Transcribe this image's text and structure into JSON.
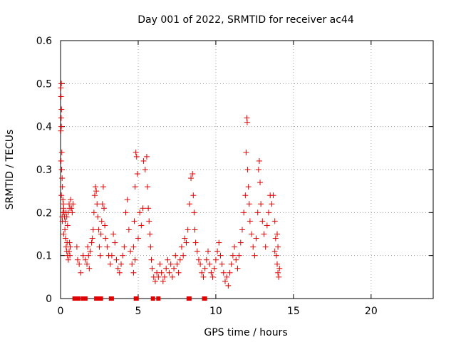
{
  "chart_data": {
    "type": "scatter",
    "title": "Day 001 of 2022, SRMTID for receiver ac44",
    "xlabel": "GPS time / hours",
    "ylabel": "SRMTID / TECUs",
    "xlim": [
      0,
      24
    ],
    "ylim": [
      0,
      0.6
    ],
    "grid": true,
    "marker": "plus",
    "color": "#e00000",
    "xticks": [
      0,
      5,
      10,
      15,
      20
    ],
    "xtick_labels": [
      "0",
      "5",
      "10",
      "15",
      "20"
    ],
    "yticks": [
      0,
      0.1,
      0.2,
      0.3,
      0.4,
      0.5,
      0.6
    ],
    "ytick_labels": [
      "0",
      "0.1",
      "0.2",
      "0.3",
      "0.4",
      "0.5",
      "0.6"
    ],
    "series": [
      {
        "name": "SRMTID",
        "marker": "plus",
        "points": [
          [
            0.02,
            0.49
          ],
          [
            0.05,
            0.5
          ],
          [
            0.03,
            0.47
          ],
          [
            0.06,
            0.44
          ],
          [
            0.04,
            0.42
          ],
          [
            0.02,
            0.39
          ],
          [
            0.05,
            0.4
          ],
          [
            0.08,
            0.34
          ],
          [
            0.03,
            0.32
          ],
          [
            0.07,
            0.3
          ],
          [
            0.1,
            0.28
          ],
          [
            0.12,
            0.26
          ],
          [
            0.05,
            0.24
          ],
          [
            0.15,
            0.23
          ],
          [
            0.18,
            0.22
          ],
          [
            0.2,
            0.21
          ],
          [
            0.22,
            0.2
          ],
          [
            0.25,
            0.19
          ],
          [
            0.3,
            0.18
          ],
          [
            0.35,
            0.2
          ],
          [
            0.4,
            0.19
          ],
          [
            0.45,
            0.17
          ],
          [
            0.5,
            0.2
          ],
          [
            0.55,
            0.22
          ],
          [
            0.6,
            0.21
          ],
          [
            0.65,
            0.23
          ],
          [
            0.7,
            0.21
          ],
          [
            0.75,
            0.2
          ],
          [
            0.8,
            0.22
          ],
          [
            0.28,
            0.16
          ],
          [
            0.32,
            0.14
          ],
          [
            0.36,
            0.12
          ],
          [
            0.4,
            0.11
          ],
          [
            0.45,
            0.1
          ],
          [
            0.5,
            0.09
          ],
          [
            0.55,
            0.11
          ],
          [
            0.6,
            0.1
          ],
          [
            0.42,
            0.13
          ],
          [
            0.2,
            0.15
          ],
          [
            0.12,
            0.18
          ],
          [
            0.15,
            0.2
          ],
          [
            0.1,
            0.19
          ],
          [
            0.62,
            0.12
          ],
          [
            0.58,
            0.13
          ],
          [
            1.05,
            0.12
          ],
          [
            1.1,
            0.09
          ],
          [
            1.2,
            0.08
          ],
          [
            1.3,
            0.06
          ],
          [
            1.45,
            0.1
          ],
          [
            1.6,
            0.09
          ],
          [
            1.7,
            0.08
          ],
          [
            1.75,
            0.12
          ],
          [
            1.8,
            0.1
          ],
          [
            1.85,
            0.07
          ],
          [
            1.9,
            0.11
          ],
          [
            2.0,
            0.13
          ],
          [
            2.05,
            0.14
          ],
          [
            2.1,
            0.16
          ],
          [
            2.15,
            0.2
          ],
          [
            2.2,
            0.24
          ],
          [
            2.25,
            0.26
          ],
          [
            2.3,
            0.25
          ],
          [
            2.35,
            0.22
          ],
          [
            2.4,
            0.19
          ],
          [
            2.45,
            0.16
          ],
          [
            2.5,
            0.12
          ],
          [
            2.55,
            0.1
          ],
          [
            2.6,
            0.15
          ],
          [
            2.65,
            0.18
          ],
          [
            2.7,
            0.22
          ],
          [
            2.75,
            0.26
          ],
          [
            2.8,
            0.21
          ],
          [
            2.85,
            0.17
          ],
          [
            2.9,
            0.14
          ],
          [
            3.0,
            0.12
          ],
          [
            3.1,
            0.1
          ],
          [
            3.2,
            0.08
          ],
          [
            3.3,
            0.1
          ],
          [
            3.4,
            0.15
          ],
          [
            3.5,
            0.13
          ],
          [
            3.6,
            0.09
          ],
          [
            3.7,
            0.07
          ],
          [
            3.8,
            0.06
          ],
          [
            3.9,
            0.08
          ],
          [
            4.0,
            0.1
          ],
          [
            4.1,
            0.12
          ],
          [
            4.2,
            0.2
          ],
          [
            4.3,
            0.23
          ],
          [
            4.4,
            0.16
          ],
          [
            4.5,
            0.11
          ],
          [
            4.6,
            0.08
          ],
          [
            4.7,
            0.06
          ],
          [
            4.8,
            0.09
          ],
          [
            4.85,
            0.34
          ],
          [
            4.9,
            0.33
          ],
          [
            4.95,
            0.29
          ],
          [
            4.8,
            0.26
          ],
          [
            4.75,
            0.18
          ],
          [
            4.7,
            0.12
          ],
          [
            5.0,
            0.14
          ],
          [
            5.1,
            0.2
          ],
          [
            5.2,
            0.17
          ],
          [
            5.3,
            0.21
          ],
          [
            5.35,
            0.32
          ],
          [
            5.45,
            0.3
          ],
          [
            5.55,
            0.33
          ],
          [
            5.6,
            0.26
          ],
          [
            5.65,
            0.21
          ],
          [
            5.7,
            0.18
          ],
          [
            5.75,
            0.15
          ],
          [
            5.8,
            0.12
          ],
          [
            5.85,
            0.09
          ],
          [
            5.9,
            0.07
          ],
          [
            6.0,
            0.05
          ],
          [
            6.1,
            0.04
          ],
          [
            6.2,
            0.06
          ],
          [
            6.3,
            0.05
          ],
          [
            6.4,
            0.08
          ],
          [
            6.5,
            0.06
          ],
          [
            6.6,
            0.04
          ],
          [
            6.7,
            0.05
          ],
          [
            6.8,
            0.07
          ],
          [
            6.9,
            0.09
          ],
          [
            7.0,
            0.06
          ],
          [
            7.1,
            0.08
          ],
          [
            7.2,
            0.05
          ],
          [
            7.3,
            0.07
          ],
          [
            7.4,
            0.1
          ],
          [
            7.5,
            0.08
          ],
          [
            7.6,
            0.06
          ],
          [
            7.7,
            0.09
          ],
          [
            7.8,
            0.12
          ],
          [
            7.9,
            0.1
          ],
          [
            8.0,
            0.14
          ],
          [
            8.1,
            0.13
          ],
          [
            8.2,
            0.16
          ],
          [
            8.3,
            0.22
          ],
          [
            8.4,
            0.28
          ],
          [
            8.5,
            0.29
          ],
          [
            8.55,
            0.24
          ],
          [
            8.6,
            0.2
          ],
          [
            8.65,
            0.16
          ],
          [
            8.7,
            0.13
          ],
          [
            8.8,
            0.11
          ],
          [
            8.9,
            0.09
          ],
          [
            9.0,
            0.08
          ],
          [
            9.1,
            0.06
          ],
          [
            9.2,
            0.05
          ],
          [
            9.3,
            0.07
          ],
          [
            9.4,
            0.09
          ],
          [
            9.5,
            0.11
          ],
          [
            9.6,
            0.08
          ],
          [
            9.7,
            0.06
          ],
          [
            9.8,
            0.05
          ],
          [
            9.9,
            0.07
          ],
          [
            10.0,
            0.09
          ],
          [
            10.1,
            0.11
          ],
          [
            10.2,
            0.13
          ],
          [
            10.3,
            0.1
          ],
          [
            10.4,
            0.08
          ],
          [
            10.5,
            0.06
          ],
          [
            10.6,
            0.04
          ],
          [
            10.7,
            0.05
          ],
          [
            10.8,
            0.03
          ],
          [
            10.9,
            0.06
          ],
          [
            11.0,
            0.08
          ],
          [
            11.1,
            0.1
          ],
          [
            11.2,
            0.12
          ],
          [
            11.3,
            0.09
          ],
          [
            11.4,
            0.07
          ],
          [
            11.5,
            0.1
          ],
          [
            11.6,
            0.13
          ],
          [
            11.7,
            0.16
          ],
          [
            11.8,
            0.2
          ],
          [
            11.9,
            0.24
          ],
          [
            11.95,
            0.34
          ],
          [
            12.0,
            0.42
          ],
          [
            12.02,
            0.41
          ],
          [
            12.05,
            0.3
          ],
          [
            12.1,
            0.26
          ],
          [
            12.15,
            0.22
          ],
          [
            12.2,
            0.18
          ],
          [
            12.3,
            0.15
          ],
          [
            12.4,
            0.12
          ],
          [
            12.5,
            0.1
          ],
          [
            12.6,
            0.14
          ],
          [
            12.7,
            0.2
          ],
          [
            12.75,
            0.3
          ],
          [
            12.8,
            0.32
          ],
          [
            12.85,
            0.27
          ],
          [
            12.9,
            0.22
          ],
          [
            13.0,
            0.18
          ],
          [
            13.1,
            0.15
          ],
          [
            13.2,
            0.12
          ],
          [
            13.3,
            0.17
          ],
          [
            13.4,
            0.2
          ],
          [
            13.5,
            0.24
          ],
          [
            13.6,
            0.22
          ],
          [
            13.7,
            0.24
          ],
          [
            13.8,
            0.18
          ],
          [
            13.85,
            0.14
          ],
          [
            13.9,
            0.1
          ],
          [
            13.95,
            0.08
          ],
          [
            14.0,
            0.06
          ],
          [
            14.05,
            0.05
          ],
          [
            14.1,
            0.07
          ],
          [
            14.0,
            0.12
          ],
          [
            13.95,
            0.15
          ],
          [
            13.8,
            0.11
          ],
          [
            0.9,
            0.0
          ],
          [
            1.0,
            0.0
          ],
          [
            1.05,
            0.0
          ],
          [
            1.1,
            0.0
          ],
          [
            1.15,
            0.0
          ],
          [
            1.45,
            0.0
          ],
          [
            1.5,
            0.0
          ],
          [
            1.55,
            0.0
          ],
          [
            1.6,
            0.0
          ],
          [
            2.3,
            0.0
          ],
          [
            2.4,
            0.0
          ],
          [
            2.55,
            0.0
          ],
          [
            2.6,
            0.0
          ],
          [
            3.25,
            0.0
          ],
          [
            3.3,
            0.0
          ],
          [
            4.85,
            0.0
          ],
          [
            4.9,
            0.0
          ],
          [
            5.95,
            0.0
          ],
          [
            6.3,
            0.0
          ],
          [
            8.25,
            0.0
          ],
          [
            8.3,
            0.0
          ],
          [
            9.25,
            0.0
          ],
          [
            9.3,
            0.0
          ]
        ]
      }
    ]
  }
}
